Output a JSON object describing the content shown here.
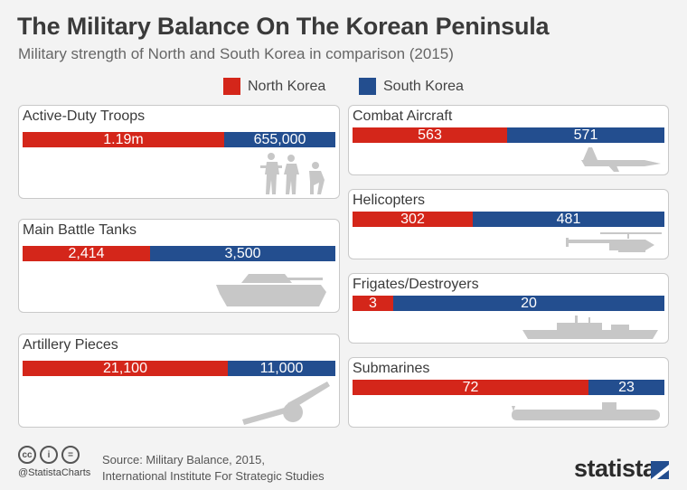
{
  "header": {
    "title": "The Military Balance On The Korean Peninsula",
    "subtitle": "Military strength of North and South Korea in comparison (2015)"
  },
  "legend": {
    "north_label": "North Korea",
    "south_label": "South Korea"
  },
  "colors": {
    "north": "#d4261a",
    "south": "#234e8f",
    "silhouette": "#c7c7c7"
  },
  "chart_data": {
    "type": "bar",
    "title": "The Military Balance On The Korean Peninsula",
    "subtitle": "Military strength of North and South Korea in comparison (2015)",
    "categories": [
      "Active-Duty Troops",
      "Main Battle Tanks",
      "Artillery Pieces",
      "Combat Aircraft",
      "Helicopters",
      "Frigates/Destroyers",
      "Submarines"
    ],
    "series": [
      {
        "name": "North Korea",
        "values": [
          1190000,
          2414,
          21100,
          563,
          302,
          3,
          72
        ],
        "labels": [
          "1.19m",
          "2,414",
          "21,100",
          "563",
          "302",
          "3",
          "72"
        ]
      },
      {
        "name": "South Korea",
        "values": [
          655000,
          3500,
          11000,
          571,
          481,
          20,
          23
        ],
        "labels": [
          "655,000",
          "3,500",
          "11,000",
          "571",
          "481",
          "20",
          "23"
        ]
      }
    ],
    "stacked_percent": true,
    "legend_position": "top-center"
  },
  "icons": [
    "troops-icon",
    "tank-icon",
    "artillery-icon",
    "fighter-jet-icon",
    "helicopter-icon",
    "warship-icon",
    "submarine-icon"
  ],
  "footer": {
    "cc_symbols": [
      "cc",
      "i",
      "="
    ],
    "handle": "@StatistaCharts",
    "source_line1": "Source: Military Balance, 2015,",
    "source_line2": "International Institute For Strategic Studies",
    "brand": "statista"
  }
}
